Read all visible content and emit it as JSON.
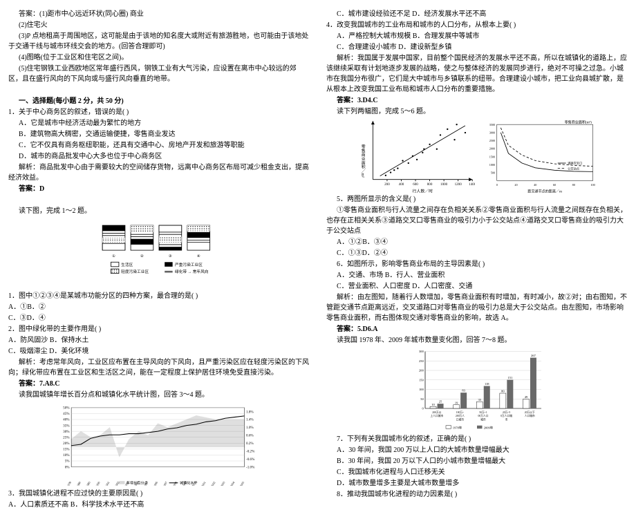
{
  "leftCol": {
    "ans_header": "答案：(1)距市中心远近环状(同心圈)  商业",
    "ans2": "(2)住宅火",
    "ans3": "(3)P 点地租高于周围地区，这可能是由于该地的知名度大或附近有旅游胜地，也可能由于该地处于交通干线与城市环线交会的地方。(回答合理即可)",
    "ans4": "(4)图略(位于工业区和住宅区之间)。",
    "ans5": "(5)住宅钢铁工业西欧地区常年盛行西风，钢铁工业有大气污染，应设置在离市中心较远的郊区，且在盛行风向的下风向或与盛行风向垂直的地带。",
    "sec1_title": "一、选择题(每小题 2 分，共 50 分)",
    "q1": "1．关于中心商务区的叙述，错误的是(   )",
    "q1a": "A．它是城市中经济活动最为繁忙的地方",
    "q1b": "B．建筑物高大稠密，交通运输便捷，零售商业发达",
    "q1c": "C．它不仅具有商务枢纽职能，还具有交通中心、房地产开发和旅游等职能",
    "q1d": "D．城市的商品批发中心大多也位于中心商务区",
    "q1exp": "解析：商品批发中心由于需要较大的空间储存货物，远离中心商务区布局可减少租金支出，提高经济效益。",
    "q1ans": "答案：D",
    "fig1cap": "读下图，完成 1～2 题。",
    "legend": {
      "a": "生活区",
      "b": "轻度污染工业区",
      "c": "严重污染工业区",
      "d": "绿化带 → 常年风向"
    },
    "q2": "1．图中①②③④是某城市功能分区的四种方案，最合理的是(   )",
    "q2a": "A．①B．②",
    "q2b": "C．③D．④",
    "q3": "2．图中绿化带的主要作用是(   )",
    "q3a": "A．防风固沙 B．保持水土",
    "q3b": "C．吸烟滞尘 D．美化环境",
    "q3exp": "解析：考虑常年风向，工业区应布置在主导风向的下风向，且严重污染区应在轻度污染区的下风向；绿化带应布置在工业区和生活区之间，能在一定程度上保护居住环境免受直接污染。",
    "q3ans": "答案：7.A8.C",
    "fig2cap": "读我国城镇年增长百分点和城镇化水平统计图，回答 3～4 题。",
    "linechart": {
      "type": "line",
      "xticks": [
        "1978",
        "1980",
        "1985",
        "1990",
        "1991",
        "1992",
        "1993",
        "1994",
        "1995",
        "1996",
        "1997",
        "1998",
        "1999",
        "2000",
        "2001",
        "2002",
        "2003",
        "2004",
        "2005"
      ],
      "left_ylim": [
        0,
        50
      ],
      "left_step": 5,
      "right_ylim": [
        -1.0,
        2.0
      ],
      "right_step": 0.4,
      "series": {
        "growth": {
          "label": "年增长百分点",
          "color": "#000",
          "style": "band",
          "values": [
            0.4,
            0.8,
            0.5,
            0.6,
            1.0,
            -0.5,
            0.4,
            0.8,
            0.6,
            1.2,
            1.0,
            1.2,
            1.4,
            1.6,
            1.5,
            1.4,
            1.4,
            1.4,
            1.4
          ]
        },
        "level": {
          "label": "城镇化水平",
          "color": "#000",
          "style": "line",
          "values": [
            18,
            19,
            24,
            26,
            27,
            27,
            28,
            28,
            29,
            30,
            32,
            33,
            35,
            36,
            38,
            39,
            41,
            42,
            43
          ]
        }
      },
      "grid_color": "#c8c8c8",
      "bg": "#ffffff"
    },
    "q4": "3．我国城镇化进程不应过快的主要原因是(   )",
    "q4a": "A．人口素质还不高 B．科学技术水平还不高"
  },
  "rightCol": {
    "q4c": "C．城市建设经验还不足 D．经济发展水平还不高",
    "q5": "4．改变我国城市的工业布局和城市的人口分布，从根本上要(   )",
    "q5a": "A．严格控制大城市规模 B．合理发展中等城市",
    "q5b": "C．合理建设小城市 D．建设新型乡镇",
    "q5exp": "解析：我国属于发展中国家，目前整个国民经济的发展水平还不高，所以在城镇化的道路上，应该继续采取有计划地逐步发展的战略，使之与整体经济的发展同步进行，绝对不可操之过急。小城市在我国分布很广，它们是大中城市与乡镇联系的纽带。合理建设小城市，把工业向县城扩散，是从根本上改变我国工业布局和城市人口分布的重要措施。",
    "q5ans": "答案：3.D4.C",
    "fig3cap": "读下列两幅图，完成 5～6 题。",
    "scatter1": {
      "type": "scatter+line",
      "xlabel": "行人数／时",
      "ylabel": "零售商业面积／m²",
      "xlim": [
        0,
        1400
      ],
      "xticks": [
        200,
        400,
        600,
        800,
        1000,
        1200,
        1400
      ],
      "color": "#000",
      "bg": "#fff",
      "line": [
        [
          100,
          30
        ],
        [
          1300,
          460
        ]
      ],
      "points": [
        [
          180,
          35
        ],
        [
          250,
          60
        ],
        [
          300,
          80
        ],
        [
          350,
          95
        ],
        [
          420,
          160
        ],
        [
          500,
          140
        ],
        [
          560,
          200
        ],
        [
          620,
          170
        ],
        [
          700,
          230
        ],
        [
          720,
          260
        ],
        [
          800,
          300
        ],
        [
          900,
          260
        ],
        [
          950,
          380
        ],
        [
          1050,
          430
        ],
        [
          1150,
          340
        ],
        [
          1180,
          470
        ],
        [
          1300,
          400
        ]
      ]
    },
    "scatter2": {
      "type": "line",
      "xlabel": "距交通节点的距离／m",
      "ylabel": "零售商业面积(m²)",
      "xlim": [
        0,
        100
      ],
      "xticks": [
        0,
        20,
        40,
        60,
        80,
        100
      ],
      "ylim": [
        0,
        3500
      ],
      "yticks": [
        500,
        1000,
        1500,
        2000,
        2500,
        3000,
        3500
      ],
      "series": {
        "road": {
          "label": "道路交叉口",
          "color": "#000",
          "values": [
            [
              4,
              3000
            ],
            [
              12,
              1700
            ],
            [
              26,
              1100
            ],
            [
              40,
              800
            ],
            [
              60,
              650
            ],
            [
              80,
              580
            ],
            [
              100,
              560
            ]
          ]
        },
        "bus": {
          "label": "公交站点",
          "color": "#000",
          "dash": "4 3",
          "values": [
            [
              4,
              3300
            ],
            [
              12,
              2200
            ],
            [
              26,
              1600
            ],
            [
              40,
              1250
            ],
            [
              60,
              1050
            ],
            [
              80,
              950
            ],
            [
              100,
              900
            ]
          ]
        }
      },
      "bg": "#fff"
    },
    "q6": "5．两图所显示的含义是(   )",
    "q6opts": "①零售商业面积与行人流量之间存在负相关关系②零售商业面积与行人流量之间既存在负相关，也存在正相关关系③道路交叉口零售商业的吸引力小于公交站点④道路交叉口零售商业的吸引力大于公交站点",
    "q6a": "A．①②B．③④",
    "q6b": "C．①③D．②④",
    "q7": "6．如图所示，影响零售商业布局的主导因素是(   )",
    "q7a": "A．交通、市场 B．行人、营业面积",
    "q7b": "C．营业面积、人口密度 D．人口密度、交通",
    "q7exp": "解析：由左图知，随着行人数增加，零售商业面积有时增加，有时减小，故②对；由右图知，不管距交通节点距离远近，交叉道路口对零售商业的吸引力总是大于公交站点。由左图知，市场影响零售商业面积，而右图体现交通对零售商业的影响，故选 A。",
    "q7ans": "答案：5.D6.A",
    "fig4cap": "读我国 1978 年、2009 年城市数量变化图，回答 7～8 题。",
    "barchart": {
      "type": "grouped-bar",
      "ylabel": "城市数量/个",
      "ylim": [
        0,
        300
      ],
      "ystep": 50,
      "categories": [
        "200万以上人口城市",
        "100万~200万人口城市",
        "50万~100万人口城市",
        "20万~50万人口城市",
        "20万以下人口城市"
      ],
      "series": {
        "y1978": {
          "label": "1978年",
          "color": "#ffffff",
          "stroke": "#000",
          "values": [
            10,
            19,
            35,
            80,
            49
          ]
        },
        "y2009": {
          "label": "2009年",
          "color": "#696969",
          "values": [
            25,
            83,
            118,
            151,
            267
          ]
        }
      },
      "value_labels": [
        [
          "10",
          "25"
        ],
        [
          "19",
          "83"
        ],
        [
          "35",
          "118"
        ],
        [
          "80",
          "151"
        ],
        [
          "49",
          "267"
        ]
      ],
      "grid_color": "#b5b5b5",
      "bg": "#ffffff"
    },
    "q8": "7．下列有关我国城市化的叙述，正确的是(   )",
    "q8a": "A．30 年间，我国 200 万以上人口的大城市数量增幅最大",
    "q8b": "B．30 年间，我国 20 万以下人口的小城市数量增幅最大",
    "q8c": "C．我国城市化进程与人口迁移无关",
    "q8d": "D．城市数量增多主要是大城市数量增多",
    "q9": "8．推动我国城市化进程的动力因素是(   )"
  }
}
